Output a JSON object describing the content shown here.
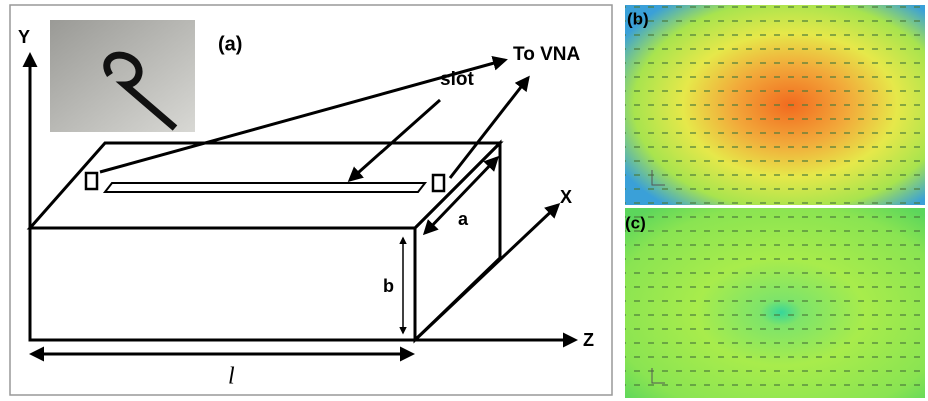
{
  "panel_a": {
    "label": "(a)",
    "axis_y": "Y",
    "axis_x": "X",
    "axis_z": "Z",
    "port": "To VNA",
    "slot": "slot",
    "dim_a": "a",
    "dim_b": "b",
    "dim_l": "l"
  },
  "panel_b": {
    "label": "(b)"
  },
  "panel_c": {
    "label": "(c)"
  }
}
